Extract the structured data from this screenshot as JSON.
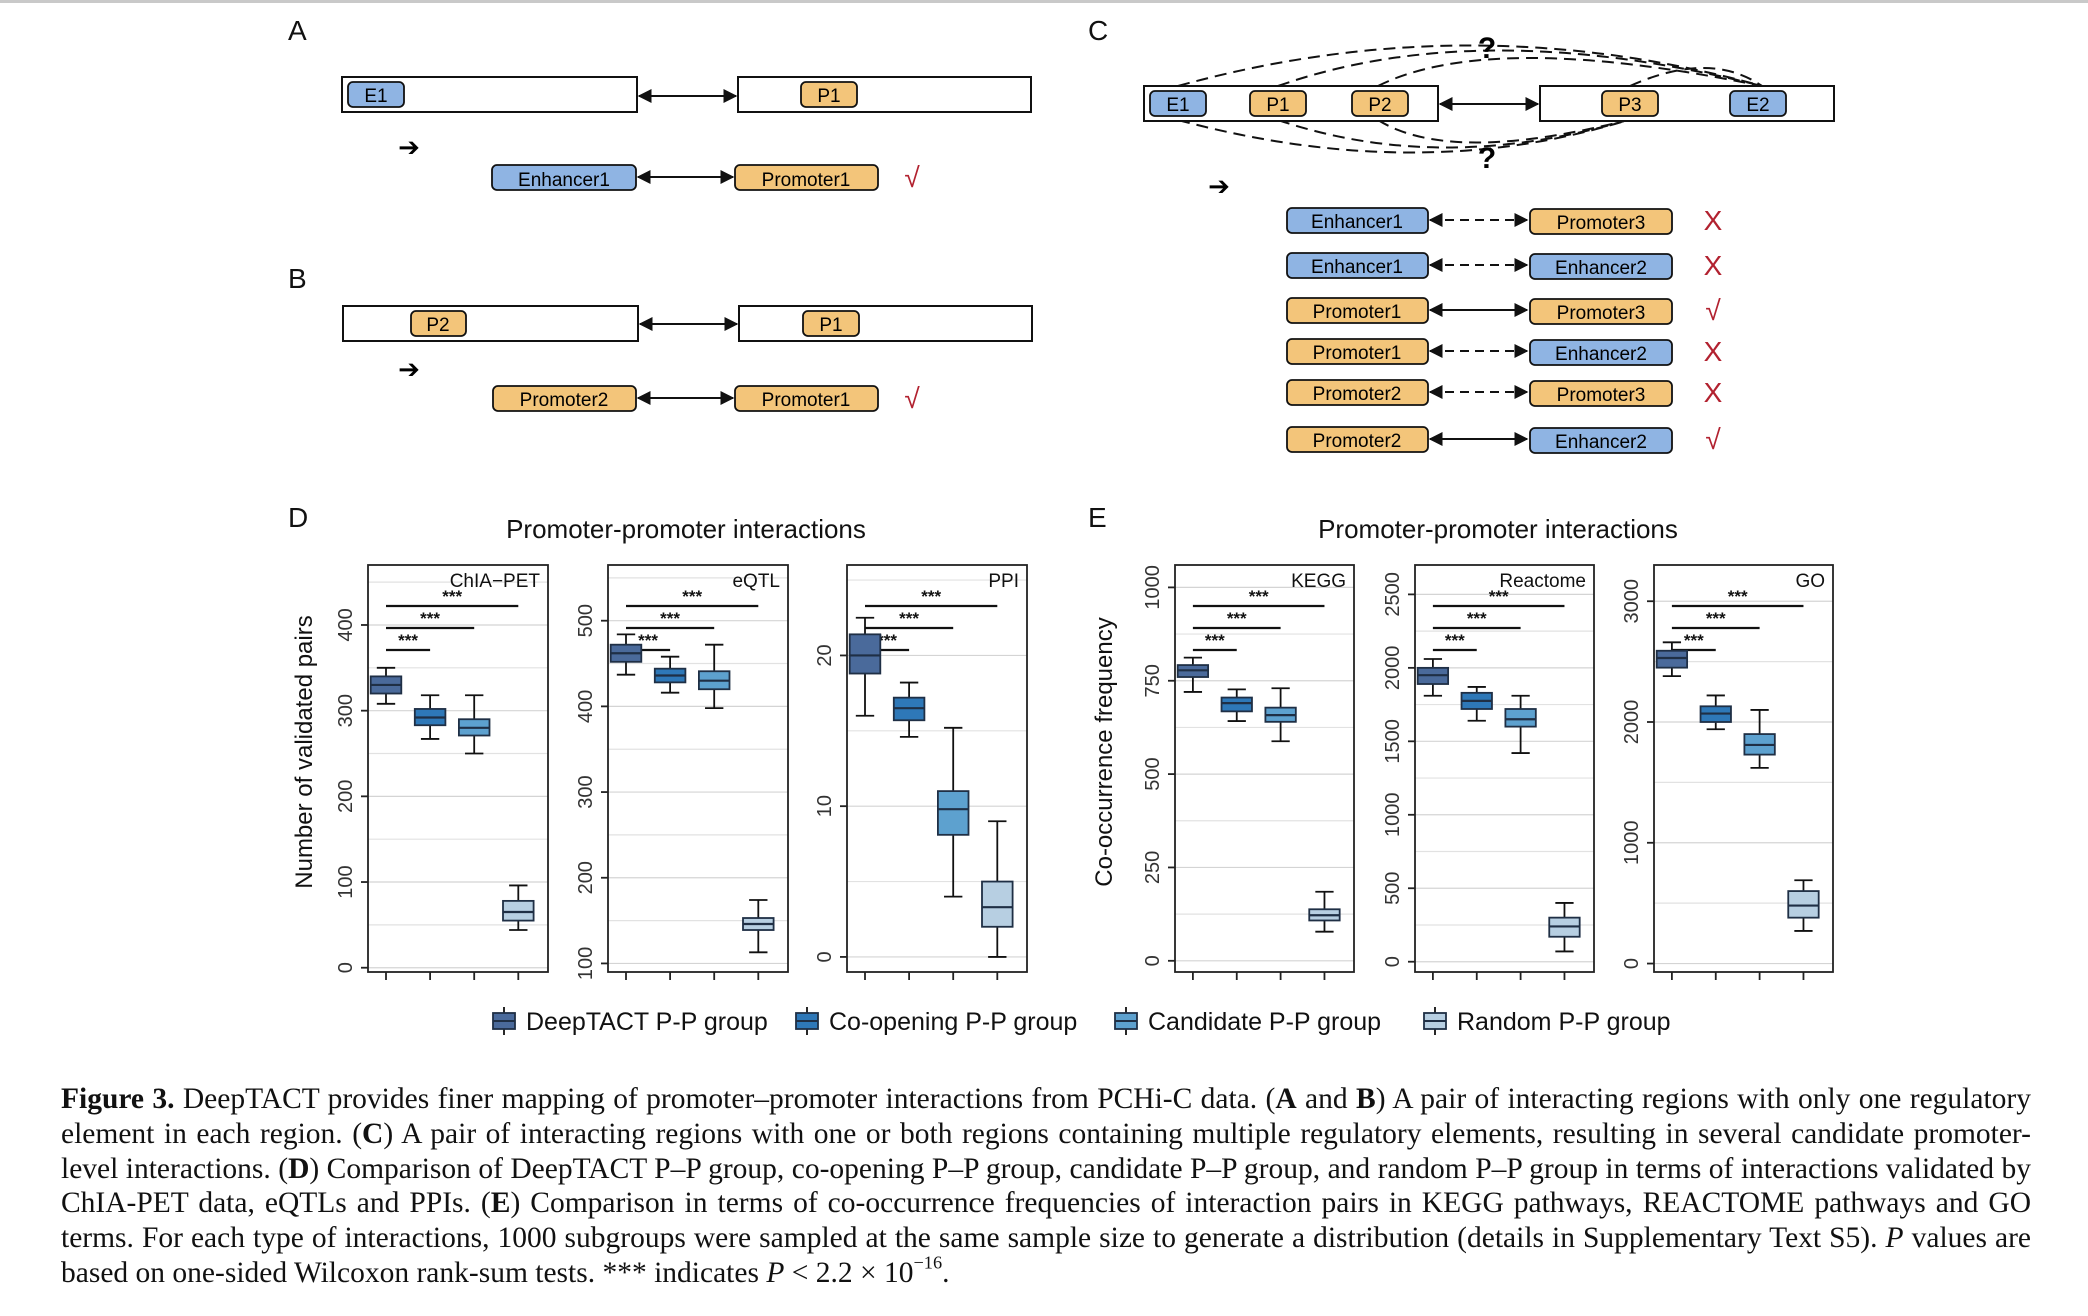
{
  "panel_labels": {
    "a": "A",
    "b": "B",
    "c": "C",
    "d": "D",
    "e": "E"
  },
  "marks": {
    "check": "√",
    "cross": "X",
    "arrow": "➔",
    "question": "?"
  },
  "panelA": {
    "region_left": "E1",
    "region_right": "P1",
    "pair_left": "Enhancer1",
    "pair_right": "Promoter1"
  },
  "panelB": {
    "region_left": "P2",
    "region_right": "P1",
    "pair_left": "Promoter2",
    "pair_right": "Promoter1"
  },
  "panelC": {
    "region_left": [
      "E1",
      "P1",
      "P2"
    ],
    "region_right": [
      "P3",
      "E2"
    ],
    "pairs": [
      {
        "left": "Enhancer1",
        "left_type": "enhancer",
        "right": "Promoter3",
        "right_type": "promoter",
        "link": "dashed",
        "verdict": "cross"
      },
      {
        "left": "Enhancer1",
        "left_type": "enhancer",
        "right": "Enhancer2",
        "right_type": "enhancer",
        "link": "dashed",
        "verdict": "cross"
      },
      {
        "left": "Promoter1",
        "left_type": "promoter",
        "right": "Promoter3",
        "right_type": "promoter",
        "link": "solid",
        "verdict": "check"
      },
      {
        "left": "Promoter1",
        "left_type": "promoter",
        "right": "Enhancer2",
        "right_type": "enhancer",
        "link": "dashed",
        "verdict": "cross"
      },
      {
        "left": "Promoter2",
        "left_type": "promoter",
        "right": "Promoter3",
        "right_type": "promoter",
        "link": "dashed",
        "verdict": "cross"
      },
      {
        "left": "Promoter2",
        "left_type": "promoter",
        "right": "Enhancer2",
        "right_type": "enhancer",
        "link": "solid",
        "verdict": "check"
      }
    ]
  },
  "colors": {
    "enhancer": "#8fb4e3",
    "promoter": "#f3c57a",
    "verdict": "#b22230",
    "groups": [
      "#4a6a9b",
      "#2e78b8",
      "#5da1cf",
      "#b7cfe2"
    ]
  },
  "legend": [
    "DeepTACT P-P group",
    "Co-opening P-P group",
    "Candidate P-P group",
    "Random P-P group"
  ],
  "chart_data": [
    {
      "panel": "D",
      "type": "box",
      "title": "Promoter-promoter interactions",
      "ylabel": "Number of validated pairs",
      "series_names": [
        "DeepTACT P-P group",
        "Co-opening P-P group",
        "Candidate P-P group",
        "Random P-P group"
      ],
      "panels": [
        {
          "name": "ChIA−PET",
          "ylim": [
            -5,
            470
          ],
          "yticks": [
            0,
            100,
            200,
            300,
            400
          ],
          "grid": [
            50,
            150,
            250,
            350,
            450
          ],
          "boxes": [
            {
              "q1": 320,
              "median": 330,
              "q3": 340,
              "lo": 308,
              "hi": 350
            },
            {
              "q1": 283,
              "median": 292,
              "q3": 302,
              "lo": 267,
              "hi": 318
            },
            {
              "q1": 271,
              "median": 280,
              "q3": 290,
              "lo": 250,
              "hi": 318
            },
            {
              "q1": 55,
              "median": 65,
              "q3": 78,
              "lo": 44,
              "hi": 96
            }
          ],
          "sig": [
            "***",
            "***",
            "***"
          ]
        },
        {
          "name": "eQTL",
          "ylim": [
            90,
            565
          ],
          "yticks": [
            100,
            200,
            300,
            400,
            500
          ],
          "grid": [
            150,
            250,
            350,
            450,
            550
          ],
          "boxes": [
            {
              "q1": 452,
              "median": 462,
              "q3": 472,
              "lo": 437,
              "hi": 484
            },
            {
              "q1": 428,
              "median": 436,
              "q3": 444,
              "lo": 416,
              "hi": 458
            },
            {
              "q1": 420,
              "median": 430,
              "q3": 441,
              "lo": 398,
              "hi": 472
            },
            {
              "q1": 139,
              "median": 146,
              "q3": 153,
              "lo": 113,
              "hi": 174
            }
          ],
          "sig": [
            "***",
            "***",
            "***"
          ]
        },
        {
          "name": "PPI",
          "ylim": [
            -1,
            26
          ],
          "yticks": [
            0,
            10,
            20
          ],
          "grid": [
            5,
            15,
            25
          ],
          "boxes": [
            {
              "q1": 18.8,
              "median": 20,
              "q3": 21.4,
              "lo": 16,
              "hi": 22.5
            },
            {
              "q1": 15.7,
              "median": 16.5,
              "q3": 17.2,
              "lo": 14.6,
              "hi": 18.2
            },
            {
              "q1": 8.1,
              "median": 9.8,
              "q3": 11,
              "lo": 4,
              "hi": 15.2
            },
            {
              "q1": 2,
              "median": 3.3,
              "q3": 5,
              "lo": 0,
              "hi": 9
            }
          ],
          "sig": [
            "***",
            "***",
            "***"
          ]
        }
      ]
    },
    {
      "panel": "E",
      "type": "box",
      "title": "Promoter-promoter interactions",
      "ylabel": "Co-occurrence frequency",
      "series_names": [
        "DeepTACT P-P group",
        "Co-opening P-P group",
        "Candidate P-P group",
        "Random P-P group"
      ],
      "panels": [
        {
          "name": "KEGG",
          "ylim": [
            -30,
            1060
          ],
          "yticks": [
            0,
            250,
            500,
            750,
            1000
          ],
          "grid": [
            125,
            375,
            625,
            875
          ],
          "boxes": [
            {
              "q1": 760,
              "median": 778,
              "q3": 792,
              "lo": 720,
              "hi": 812
            },
            {
              "q1": 668,
              "median": 690,
              "q3": 705,
              "lo": 642,
              "hi": 727
            },
            {
              "q1": 640,
              "median": 658,
              "q3": 678,
              "lo": 588,
              "hi": 730
            },
            {
              "q1": 108,
              "median": 122,
              "q3": 138,
              "lo": 78,
              "hi": 185
            }
          ],
          "sig": [
            "***",
            "***",
            "***"
          ]
        },
        {
          "name": "Reactome",
          "ylim": [
            -70,
            2700
          ],
          "yticks": [
            0,
            500,
            1000,
            1500,
            2000,
            2500
          ],
          "grid": [
            250,
            750,
            1250,
            1750,
            2250
          ],
          "boxes": [
            {
              "q1": 1890,
              "median": 1950,
              "q3": 2000,
              "lo": 1810,
              "hi": 2060
            },
            {
              "q1": 1720,
              "median": 1775,
              "q3": 1830,
              "lo": 1640,
              "hi": 1870
            },
            {
              "q1": 1600,
              "median": 1650,
              "q3": 1720,
              "lo": 1420,
              "hi": 1810
            },
            {
              "q1": 170,
              "median": 240,
              "q3": 300,
              "lo": 70,
              "hi": 400
            }
          ],
          "sig": [
            "***",
            "***",
            "***"
          ]
        },
        {
          "name": "GO",
          "ylim": [
            -70,
            3300
          ],
          "yticks": [
            0,
            1000,
            2000,
            3000
          ],
          "grid": [
            500,
            1500,
            2500
          ],
          "boxes": [
            {
              "q1": 2450,
              "median": 2530,
              "q3": 2590,
              "lo": 2380,
              "hi": 2660
            },
            {
              "q1": 2000,
              "median": 2070,
              "q3": 2130,
              "lo": 1940,
              "hi": 2220
            },
            {
              "q1": 1730,
              "median": 1810,
              "q3": 1900,
              "lo": 1620,
              "hi": 2100
            },
            {
              "q1": 380,
              "median": 480,
              "q3": 600,
              "lo": 270,
              "hi": 690
            }
          ],
          "sig": [
            "***",
            "***",
            "***"
          ]
        }
      ]
    }
  ],
  "caption": {
    "fig_label": "Figure 3.",
    "t1": " DeepTACT provides finer mapping of promoter–promoter interactions from PCHi-C data. (",
    "b_a": "A",
    "t_and": " and ",
    "b_b": "B",
    "t2": ") A pair of interacting regions with only one regulatory element in each region. (",
    "b_c": "C",
    "t3": ") A pair of interacting regions with one or both regions containing multiple regulatory elements, resulting in several candidate promoter-level interactions. (",
    "b_d": "D",
    "t4": ") Comparison of DeepTACT P–P group, co-opening P–P group, candidate P–P group, and random P–P group in terms of interactions validated by ChIA-PET data, eQTLs and PPIs. (",
    "b_e": "E",
    "t5": ") Comparison in terms of co-occurrence frequencies of interaction pairs in KEGG pathways, REACTOME pathways and GO terms. For each type of interactions, 1000 subgroups were sampled at the same sample size to generate a distribution (details in Supplementary Text S5). ",
    "i_p": "P",
    "t6": " values are based on one-sided Wilcoxon rank-sum tests. *** indicates ",
    "i_p2": "P",
    "t7": " < 2.2 × 10",
    "exp": "−16",
    "t8": "."
  }
}
